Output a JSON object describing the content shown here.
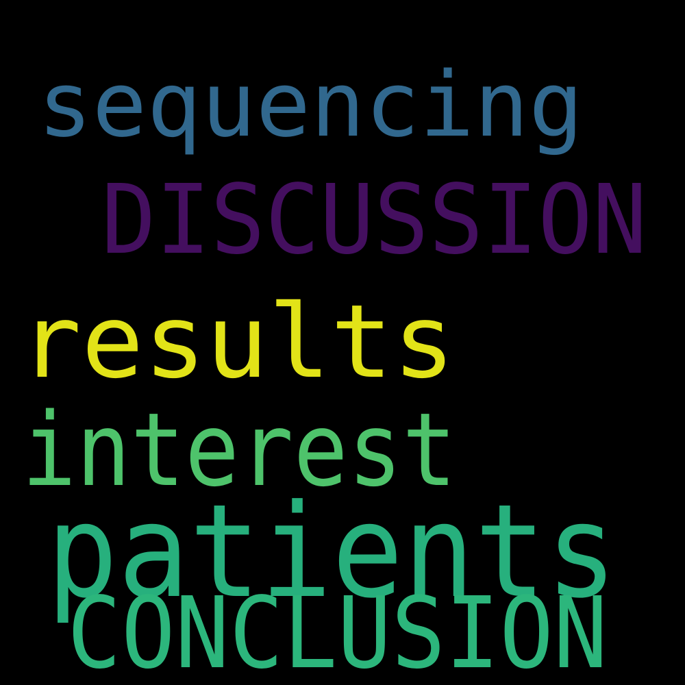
{
  "background_color": "#000000",
  "words": [
    {
      "text": "sequencing",
      "color": "#31688e"
    },
    {
      "text": "DISCUSSION",
      "color": "#440f5f"
    },
    {
      "text": "results",
      "color": "#e2e318"
    },
    {
      "text": "interest",
      "color": "#4ec36b"
    },
    {
      "text": "patients",
      "color": "#27b07d"
    },
    {
      "text": "CONCLUSION",
      "color": "#2cb67c"
    }
  ]
}
